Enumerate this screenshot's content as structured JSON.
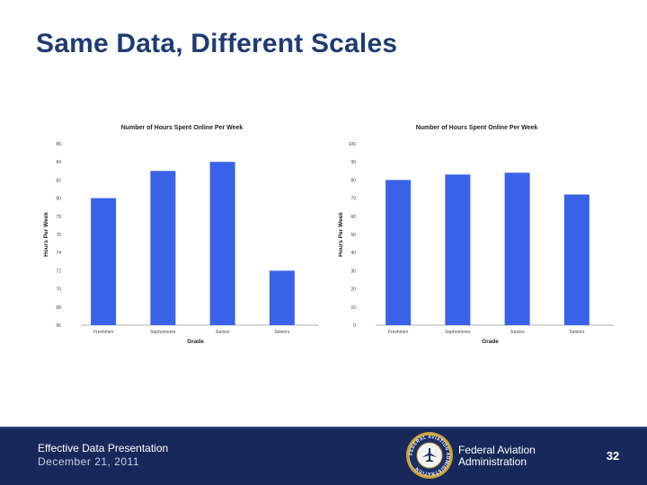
{
  "slide": {
    "title": "Same Data, Different Scales"
  },
  "chart_data": [
    {
      "type": "bar",
      "title": "Number of Hours Spent Online Per Week",
      "xlabel": "Grade",
      "ylabel": "Hours Per Week",
      "categories": [
        "Freshmen",
        "Sophomores",
        "Juniors",
        "Seniors"
      ],
      "values": [
        80,
        83,
        84,
        72
      ],
      "ylim": [
        66,
        86
      ],
      "yticks": [
        "66",
        "68",
        "70",
        "72",
        "74",
        "76",
        "78",
        "80",
        "82",
        "84",
        "86"
      ],
      "grid": false,
      "color": "#3a62e8"
    },
    {
      "type": "bar",
      "title": "Number of Hours Spent Online Per Week",
      "xlabel": "Grade",
      "ylabel": "Hours Per Week",
      "categories": [
        "Freshmen",
        "Sophomores",
        "Juniors",
        "Seniors"
      ],
      "values": [
        80,
        83,
        84,
        72
      ],
      "ylim": [
        0,
        100
      ],
      "yticks": [
        "0",
        "10",
        "20",
        "30",
        "40",
        "50",
        "60",
        "70",
        "80",
        "90",
        "100"
      ],
      "grid": false,
      "color": "#3a62e8"
    }
  ],
  "footer": {
    "presentation_title": "Effective Data Presentation",
    "date": "December 21, 2011",
    "agency_line1": "Federal Aviation",
    "agency_line2": "Administration",
    "page_number": "32",
    "seal_text": "FEDERAL AVIATION ADMINISTRATION",
    "colors": {
      "background": "#16295a",
      "seal_gold": "#c9a13a"
    }
  }
}
